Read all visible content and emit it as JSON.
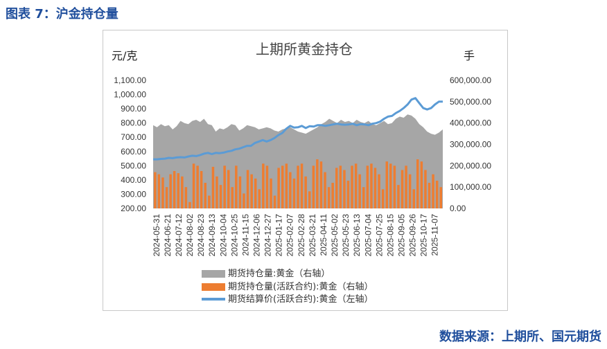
{
  "figure_title": "图表 7：沪金持仓量",
  "source": "数据来源：上期所、国元期货",
  "chart_data": {
    "type": "area",
    "title": "上期所黄金持仓",
    "y_left_label": "元/克",
    "y_right_label": "手",
    "y_left_range": [
      200,
      1100
    ],
    "y_left_ticks": [
      "200.00",
      "300.00",
      "400.00",
      "500.00",
      "600.00",
      "700.00",
      "800.00",
      "900.00",
      "1,000.00",
      "1,100.00"
    ],
    "y_right_range": [
      0,
      600000
    ],
    "y_right_ticks": [
      "0.00",
      "100,000.00",
      "200,000.00",
      "300,000.00",
      "400,000.00",
      "500,000.00",
      "600,000.00"
    ],
    "x_ticks": [
      "2024-05-31",
      "2024-06-21",
      "2024-07-12",
      "2024-08-02",
      "2024-08-23",
      "2024-09-13",
      "2024-10-04",
      "2024-10-25",
      "2024-11-15",
      "2024-12-06",
      "2024-12-27",
      "2025-01-17",
      "2025-02-07",
      "2025-02-28",
      "2025-03-21",
      "2025-04-11",
      "2025-05-02",
      "2025-05-23",
      "2025-06-13",
      "2025-07-04",
      "2025-07-25",
      "2025-08-15",
      "2025-09-05",
      "2025-09-26",
      "2025-10-17",
      "2025-11-07"
    ],
    "series": [
      {
        "name": "期货持仓量:黄金（右轴）",
        "axis": "right",
        "color": "#a6a6a6",
        "values": [
          390000,
          380000,
          395000,
          385000,
          390000,
          370000,
          385000,
          410000,
          400000,
          395000,
          410000,
          415000,
          405000,
          420000,
          395000,
          390000,
          360000,
          375000,
          370000,
          380000,
          395000,
          390000,
          365000,
          375000,
          390000,
          385000,
          380000,
          370000,
          375000,
          380000,
          375000,
          365000,
          360000,
          370000,
          375000,
          380000,
          370000,
          360000,
          355000,
          350000,
          360000,
          370000,
          380000,
          395000,
          405000,
          420000,
          410000,
          400000,
          415000,
          405000,
          410000,
          400000,
          415000,
          405000,
          400000,
          410000,
          395000,
          390000,
          400000,
          410000,
          395000,
          400000,
          420000,
          430000,
          425000,
          440000,
          435000,
          420000,
          395000,
          380000,
          360000,
          350000,
          345000,
          355000,
          370000
        ]
      },
      {
        "name": "期货持仓量(活跃合约):黄金（右轴）",
        "axis": "right",
        "color": "#ed7d31",
        "values": [
          170000,
          160000,
          145000,
          100000,
          160000,
          175000,
          165000,
          150000,
          100000,
          30000,
          210000,
          200000,
          175000,
          120000,
          60000,
          195000,
          150000,
          110000,
          200000,
          180000,
          100000,
          200000,
          150000,
          70000,
          180000,
          160000,
          140000,
          90000,
          210000,
          200000,
          140000,
          60000,
          190000,
          200000,
          210000,
          170000,
          140000,
          200000,
          210000,
          150000,
          80000,
          200000,
          230000,
          220000,
          170000,
          100000,
          120000,
          190000,
          200000,
          180000,
          130000,
          200000,
          210000,
          160000,
          100000,
          200000,
          210000,
          190000,
          160000,
          90000,
          220000,
          210000,
          200000,
          110000,
          180000,
          200000,
          160000,
          90000,
          230000,
          220000,
          180000,
          120000,
          160000,
          130000,
          100000
        ]
      },
      {
        "name": "期货结算价(活跃合约):黄金（左轴）",
        "axis": "left",
        "color": "#5b9bd5",
        "values": [
          545,
          545,
          548,
          550,
          555,
          553,
          558,
          560,
          558,
          565,
          570,
          568,
          575,
          585,
          590,
          582,
          590,
          588,
          592,
          600,
          605,
          615,
          620,
          630,
          640,
          640,
          660,
          670,
          680,
          670,
          680,
          695,
          715,
          730,
          760,
          780,
          768,
          770,
          780,
          765,
          778,
          775,
          785,
          785,
          780,
          785,
          790,
          795,
          790,
          788,
          790,
          795,
          785,
          792,
          790,
          785,
          795,
          800,
          810,
          830,
          845,
          850,
          870,
          885,
          905,
          930,
          965,
          975,
          940,
          905,
          895,
          905,
          930,
          950,
          950
        ]
      }
    ],
    "legend_position": "bottom",
    "grid": false
  }
}
